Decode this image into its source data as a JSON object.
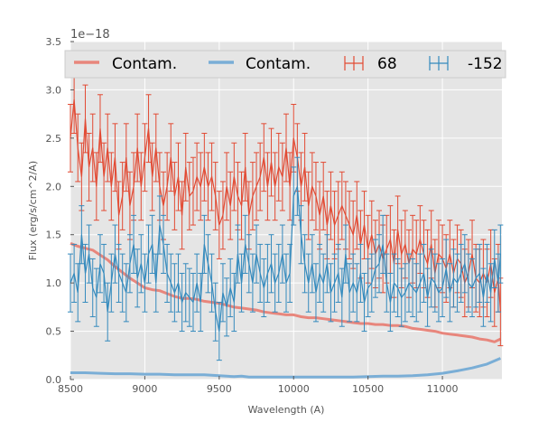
{
  "chart_data": {
    "type": "line",
    "title": "",
    "xlabel": "Wavelength (A)",
    "ylabel": "Flux (erg/s/cm^2/A)",
    "y_offset_label": "1e−18",
    "xlim": [
      8500,
      11400
    ],
    "ylim": [
      0,
      3.5
    ],
    "x_ticks": [
      8500,
      9000,
      9500,
      10000,
      10500,
      11000
    ],
    "x_tick_labels": [
      "8500",
      "9000",
      "9500",
      "10000",
      "10500",
      "11000"
    ],
    "y_ticks": [
      0,
      0.5,
      1.0,
      1.5,
      2.0,
      2.5,
      3.0,
      3.5
    ],
    "y_tick_labels": [
      "0.0",
      "0.5",
      "1.0",
      "1.5",
      "2.0",
      "2.5",
      "3.0",
      "3.5"
    ],
    "grid": true,
    "legend": {
      "placement": "top",
      "entries": [
        {
          "label": "Contam.",
          "kind": "line",
          "color": "#e8867c"
        },
        {
          "label": "Contam.",
          "kind": "line",
          "color": "#7aaed6"
        },
        {
          "label": "68",
          "kind": "errorbar",
          "color": "#e24a33"
        },
        {
          "label": "-152",
          "kind": "errorbar",
          "color": "#348abd"
        }
      ]
    },
    "series": [
      {
        "name": "Contam.",
        "kind": "line",
        "color": "#e8867c",
        "x": [
          8500,
          8550,
          8600,
          8650,
          8700,
          8750,
          8800,
          8850,
          8900,
          8950,
          9000,
          9050,
          9100,
          9150,
          9200,
          9250,
          9300,
          9350,
          9400,
          9450,
          9500,
          9550,
          9600,
          9650,
          9700,
          9750,
          9800,
          9850,
          9900,
          9950,
          10000,
          10050,
          10100,
          10150,
          10200,
          10250,
          10300,
          10350,
          10400,
          10450,
          10500,
          10550,
          10600,
          10650,
          10700,
          10750,
          10800,
          10850,
          10900,
          10950,
          11000,
          11050,
          11100,
          11150,
          11200,
          11250,
          11300,
          11350,
          11390
        ],
        "y": [
          1.41,
          1.38,
          1.36,
          1.34,
          1.29,
          1.24,
          1.17,
          1.11,
          1.05,
          1.0,
          0.95,
          0.93,
          0.92,
          0.89,
          0.86,
          0.84,
          0.84,
          0.83,
          0.81,
          0.8,
          0.79,
          0.77,
          0.75,
          0.74,
          0.73,
          0.72,
          0.7,
          0.69,
          0.68,
          0.67,
          0.67,
          0.65,
          0.64,
          0.64,
          0.63,
          0.62,
          0.61,
          0.6,
          0.59,
          0.58,
          0.58,
          0.57,
          0.57,
          0.56,
          0.56,
          0.55,
          0.53,
          0.52,
          0.51,
          0.5,
          0.48,
          0.47,
          0.46,
          0.45,
          0.44,
          0.42,
          0.41,
          0.39,
          0.42
        ]
      },
      {
        "name": "Contam.",
        "kind": "line",
        "color": "#7aaed6",
        "x": [
          8500,
          8600,
          8700,
          8800,
          8900,
          9000,
          9100,
          9200,
          9300,
          9400,
          9450,
          9500,
          9550,
          9600,
          9650,
          9700,
          9800,
          9900,
          10000,
          10100,
          10200,
          10300,
          10400,
          10500,
          10600,
          10700,
          10800,
          10900,
          11000,
          11100,
          11200,
          11300,
          11390
        ],
        "y": [
          0.07,
          0.07,
          0.065,
          0.06,
          0.06,
          0.055,
          0.055,
          0.05,
          0.05,
          0.05,
          0.045,
          0.04,
          0.035,
          0.03,
          0.035,
          0.025,
          0.025,
          0.025,
          0.025,
          0.025,
          0.025,
          0.025,
          0.025,
          0.03,
          0.035,
          0.035,
          0.04,
          0.05,
          0.065,
          0.09,
          0.12,
          0.16,
          0.22
        ]
      },
      {
        "name": "68",
        "kind": "errorbar",
        "color": "#e24a33",
        "x": [
          8500,
          8525,
          8550,
          8575,
          8600,
          8625,
          8650,
          8675,
          8700,
          8725,
          8750,
          8775,
          8800,
          8825,
          8850,
          8875,
          8900,
          8925,
          8950,
          8975,
          9000,
          9025,
          9050,
          9075,
          9100,
          9125,
          9150,
          9175,
          9200,
          9225,
          9250,
          9275,
          9300,
          9325,
          9350,
          9375,
          9400,
          9425,
          9450,
          9475,
          9500,
          9525,
          9550,
          9575,
          9600,
          9625,
          9650,
          9675,
          9700,
          9725,
          9750,
          9775,
          9800,
          9825,
          9850,
          9875,
          9900,
          9925,
          9950,
          9975,
          10000,
          10025,
          10050,
          10075,
          10100,
          10125,
          10150,
          10175,
          10200,
          10225,
          10250,
          10275,
          10300,
          10325,
          10350,
          10375,
          10400,
          10425,
          10450,
          10475,
          10500,
          10525,
          10550,
          10575,
          10600,
          10625,
          10650,
          10675,
          10700,
          10725,
          10750,
          10775,
          10800,
          10825,
          10850,
          10875,
          10900,
          10925,
          10950,
          10975,
          11000,
          11025,
          11050,
          11075,
          11100,
          11125,
          11150,
          11175,
          11200,
          11225,
          11250,
          11275,
          11300,
          11325,
          11350,
          11375,
          11390
        ],
        "y": [
          2.5,
          2.9,
          2.4,
          2.1,
          2.7,
          2.2,
          2.4,
          2.0,
          2.6,
          2.1,
          2.4,
          2.0,
          2.3,
          1.7,
          1.9,
          2.3,
          1.8,
          2.0,
          2.4,
          2.0,
          2.3,
          2.6,
          2.1,
          2.4,
          2.0,
          1.8,
          2.0,
          2.3,
          1.9,
          2.1,
          1.7,
          2.2,
          1.9,
          1.95,
          2.1,
          2.0,
          2.2,
          2.0,
          2.1,
          1.9,
          1.6,
          1.7,
          2.0,
          1.8,
          2.1,
          1.9,
          1.8,
          2.2,
          1.7,
          1.9,
          2.0,
          2.1,
          2.3,
          2.0,
          2.25,
          2.0,
          2.2,
          2.1,
          2.4,
          2.0,
          2.5,
          2.3,
          2.0,
          2.2,
          1.8,
          2.0,
          1.9,
          1.7,
          1.9,
          1.6,
          1.8,
          1.6,
          1.7,
          1.8,
          1.7,
          1.6,
          1.5,
          1.7,
          1.4,
          1.6,
          1.35,
          1.5,
          1.3,
          1.4,
          1.25,
          1.35,
          1.45,
          1.2,
          1.55,
          1.3,
          1.4,
          1.2,
          1.35,
          1.3,
          1.45,
          1.3,
          1.2,
          1.4,
          1.1,
          1.3,
          1.25,
          1.15,
          1.3,
          1.1,
          1.25,
          1.2,
          1.0,
          1.1,
          1.3,
          1.05,
          1.0,
          1.1,
          1.0,
          1.2,
          0.9,
          1.05,
          0.7
        ],
        "err": 0.35
      },
      {
        "name": "-152",
        "kind": "errorbar",
        "color": "#348abd",
        "x": [
          8500,
          8525,
          8550,
          8575,
          8600,
          8625,
          8650,
          8675,
          8700,
          8725,
          8750,
          8775,
          8800,
          8825,
          8850,
          8875,
          8900,
          8925,
          8950,
          8975,
          9000,
          9025,
          9050,
          9075,
          9100,
          9125,
          9150,
          9175,
          9200,
          9225,
          9250,
          9275,
          9300,
          9325,
          9350,
          9375,
          9400,
          9425,
          9450,
          9475,
          9500,
          9525,
          9550,
          9575,
          9600,
          9625,
          9650,
          9675,
          9700,
          9725,
          9750,
          9775,
          9800,
          9825,
          9850,
          9875,
          9900,
          9925,
          9950,
          9975,
          10000,
          10025,
          10050,
          10075,
          10100,
          10125,
          10150,
          10175,
          10200,
          10225,
          10250,
          10275,
          10300,
          10325,
          10350,
          10375,
          10400,
          10425,
          10450,
          10475,
          10500,
          10525,
          10550,
          10575,
          10600,
          10625,
          10650,
          10675,
          10700,
          10725,
          10750,
          10775,
          10800,
          10825,
          10850,
          10875,
          10900,
          10925,
          10950,
          10975,
          11000,
          11025,
          11050,
          11075,
          11100,
          11125,
          11150,
          11175,
          11200,
          11225,
          11250,
          11275,
          11300,
          11325,
          11350,
          11375,
          11390
        ],
        "y": [
          1.0,
          1.1,
          0.9,
          1.5,
          1.1,
          1.3,
          0.95,
          0.85,
          1.2,
          1.1,
          0.7,
          1.0,
          1.3,
          1.1,
          1.0,
          0.9,
          1.2,
          1.4,
          1.05,
          1.2,
          1.0,
          1.3,
          1.4,
          1.0,
          1.6,
          1.4,
          1.1,
          1.0,
          0.9,
          1.0,
          0.8,
          0.9,
          0.85,
          0.8,
          1.0,
          0.8,
          1.4,
          1.2,
          1.0,
          0.7,
          0.5,
          0.9,
          0.75,
          0.95,
          0.8,
          1.3,
          1.0,
          1.4,
          1.2,
          1.0,
          1.3,
          1.1,
          0.95,
          1.1,
          1.2,
          1.0,
          1.1,
          1.3,
          1.0,
          1.1,
          1.9,
          2.0,
          1.5,
          1.2,
          1.0,
          1.2,
          0.9,
          1.1,
          1.0,
          1.2,
          0.9,
          1.0,
          1.1,
          0.85,
          1.3,
          0.9,
          1.0,
          0.9,
          1.1,
          0.8,
          0.95,
          1.0,
          1.15,
          1.2,
          1.4,
          1.0,
          0.8,
          1.0,
          0.95,
          0.85,
          0.9,
          1.0,
          0.95,
          0.9,
          1.0,
          1.1,
          0.85,
          1.05,
          1.0,
          0.9,
          0.95,
          1.15,
          0.9,
          1.05,
          1.0,
          1.1,
          1.2,
          1.0,
          0.95,
          1.05,
          1.1,
          0.85,
          1.1,
          0.9,
          1.25,
          1.0,
          1.3
        ],
        "err": 0.3
      }
    ]
  }
}
